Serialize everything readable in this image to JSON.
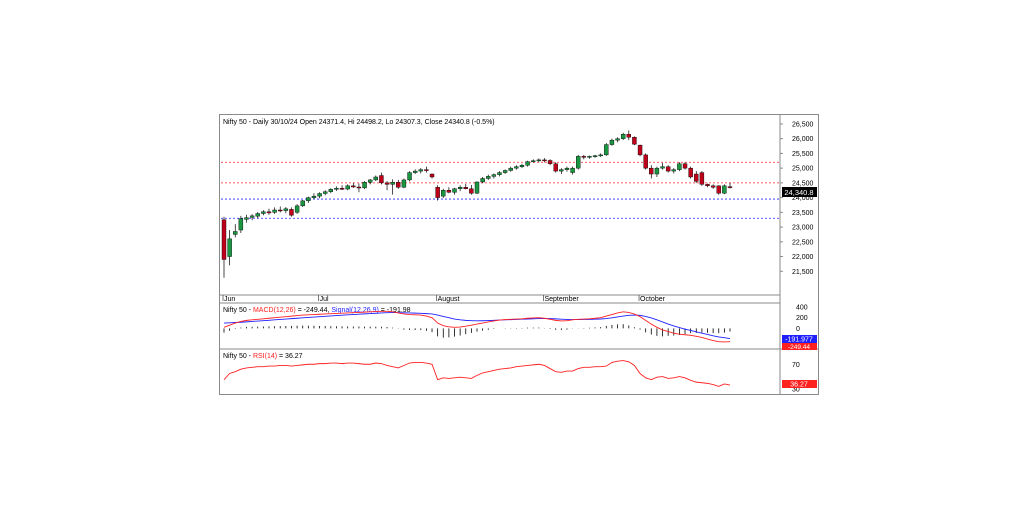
{
  "price_panel": {
    "header": "Nifty 50 - Daily 30/10/24 Open 24371.4, Hi 24498.2, Lo 24307.3, Close 24340.8 (-0.5%)",
    "last_price_tag": "24,340.8",
    "colors": {
      "up": "#1a9641",
      "down": "#c0001a",
      "resistance_line": "#ff2020",
      "support_line": "#2020ff",
      "tag_bg": "#000000"
    }
  },
  "macd_panel": {
    "label_prefix": "Nifty 50 - ",
    "macd_label": "MACD(12,26)",
    "macd_value": " = -249.44, ",
    "signal_label": "Signal(12,26,9)",
    "signal_value": " = -191.98",
    "signal_tag": "-191.977",
    "macd_tag": "-249.44",
    "colors": {
      "macd": "#ff2020",
      "signal": "#2020ff",
      "histogram": "#000000"
    }
  },
  "rsi_panel": {
    "label_prefix": "Nifty 50 - ",
    "rsi_label": "RSI(14)",
    "rsi_value": " = 36.27",
    "rsi_tag": "36.27",
    "color": "#ff2020"
  },
  "chart_data": [
    {
      "type": "candlestick",
      "title": "Nifty 50 - Daily 30/10/24 Open 24371.4, Hi 24498.2, Lo 24307.3, Close 24340.8 (-0.5%)",
      "ylim": [
        21000,
        26600
      ],
      "y_ticks": [
        "26,500",
        "26,000",
        "25,500",
        "25,000",
        "24,500",
        "24,000",
        "23,500",
        "23,000",
        "22,500",
        "22,000",
        "21,500"
      ],
      "x_ticks": [
        "Jun",
        "Jul",
        "August",
        "September",
        "October"
      ],
      "reference_lines": [
        {
          "value": 25200,
          "color": "#ff2020",
          "style": "dashed"
        },
        {
          "value": 24500,
          "color": "#ff2020",
          "style": "dashed"
        },
        {
          "value": 23950,
          "color": "#2020ff",
          "style": "dashed"
        },
        {
          "value": 23300,
          "color": "#2020ff",
          "style": "dashed"
        }
      ],
      "candles": [
        {
          "month": "Jun",
          "o": 23250,
          "h": 23350,
          "l": 21280,
          "c": 21900
        },
        {
          "o": 22000,
          "h": 22900,
          "l": 21700,
          "c": 22600
        },
        {
          "o": 22750,
          "h": 23100,
          "l": 22650,
          "c": 22850
        },
        {
          "o": 22900,
          "h": 23380,
          "l": 22800,
          "c": 23290
        },
        {
          "o": 23260,
          "h": 23420,
          "l": 23150,
          "c": 23320
        },
        {
          "o": 23330,
          "h": 23440,
          "l": 23230,
          "c": 23380
        },
        {
          "o": 23370,
          "h": 23510,
          "l": 23290,
          "c": 23460
        },
        {
          "o": 23460,
          "h": 23570,
          "l": 23400,
          "c": 23520
        },
        {
          "o": 23520,
          "h": 23620,
          "l": 23420,
          "c": 23480
        },
        {
          "o": 23500,
          "h": 23670,
          "l": 23450,
          "c": 23580
        },
        {
          "o": 23580,
          "h": 23700,
          "l": 23500,
          "c": 23560
        },
        {
          "o": 23560,
          "h": 23680,
          "l": 23470,
          "c": 23620
        },
        {
          "o": 23600,
          "h": 23670,
          "l": 23350,
          "c": 23400
        },
        {
          "o": 23500,
          "h": 23780,
          "l": 23450,
          "c": 23720
        },
        {
          "o": 23720,
          "h": 23920,
          "l": 23680,
          "c": 23890
        },
        {
          "o": 23890,
          "h": 24030,
          "l": 23820,
          "c": 24000
        },
        {
          "o": 24000,
          "h": 24150,
          "l": 23950,
          "c": 24050
        },
        {
          "month": "Jul",
          "o": 24050,
          "h": 24180,
          "l": 23980,
          "c": 24140
        },
        {
          "o": 24140,
          "h": 24250,
          "l": 24080,
          "c": 24200
        },
        {
          "o": 24200,
          "h": 24320,
          "l": 24150,
          "c": 24280
        },
        {
          "o": 24280,
          "h": 24380,
          "l": 24230,
          "c": 24320
        },
        {
          "o": 24320,
          "h": 24420,
          "l": 24260,
          "c": 24280
        },
        {
          "o": 24290,
          "h": 24450,
          "l": 24250,
          "c": 24400
        },
        {
          "o": 24400,
          "h": 24500,
          "l": 24330,
          "c": 24360
        },
        {
          "o": 24360,
          "h": 24480,
          "l": 24180,
          "c": 24330
        },
        {
          "o": 24330,
          "h": 24560,
          "l": 24290,
          "c": 24520
        },
        {
          "o": 24520,
          "h": 24630,
          "l": 24450,
          "c": 24600
        },
        {
          "o": 24600,
          "h": 24750,
          "l": 24560,
          "c": 24700
        },
        {
          "o": 24750,
          "h": 24850,
          "l": 24450,
          "c": 24500
        },
        {
          "o": 24500,
          "h": 24560,
          "l": 24250,
          "c": 24450
        },
        {
          "o": 24450,
          "h": 24620,
          "l": 24100,
          "c": 24520
        },
        {
          "o": 24520,
          "h": 24600,
          "l": 24300,
          "c": 24350
        },
        {
          "o": 24350,
          "h": 24650,
          "l": 24320,
          "c": 24600
        },
        {
          "o": 24600,
          "h": 24900,
          "l": 24550,
          "c": 24850
        },
        {
          "o": 24850,
          "h": 24960,
          "l": 24800,
          "c": 24900
        },
        {
          "o": 24900,
          "h": 25000,
          "l": 24820,
          "c": 24950
        },
        {
          "o": 24950,
          "h": 25050,
          "l": 24850,
          "c": 24920
        },
        {
          "o": 24800,
          "h": 24820,
          "l": 24650,
          "c": 24700
        },
        {
          "month": "August",
          "o": 24350,
          "h": 24420,
          "l": 23900,
          "c": 24000
        },
        {
          "o": 24050,
          "h": 24300,
          "l": 23990,
          "c": 24250
        },
        {
          "o": 24250,
          "h": 24350,
          "l": 24150,
          "c": 24180
        },
        {
          "o": 24180,
          "h": 24330,
          "l": 24100,
          "c": 24300
        },
        {
          "o": 24300,
          "h": 24420,
          "l": 24220,
          "c": 24350
        },
        {
          "o": 24350,
          "h": 24470,
          "l": 24280,
          "c": 24300
        },
        {
          "o": 24300,
          "h": 24430,
          "l": 24100,
          "c": 24150
        },
        {
          "o": 24150,
          "h": 24550,
          "l": 24120,
          "c": 24530
        },
        {
          "o": 24530,
          "h": 24700,
          "l": 24490,
          "c": 24650
        },
        {
          "o": 24650,
          "h": 24780,
          "l": 24600,
          "c": 24720
        },
        {
          "o": 24720,
          "h": 24820,
          "l": 24650,
          "c": 24780
        },
        {
          "o": 24780,
          "h": 24900,
          "l": 24720,
          "c": 24850
        },
        {
          "o": 24850,
          "h": 24960,
          "l": 24800,
          "c": 24920
        },
        {
          "o": 24920,
          "h": 25050,
          "l": 24880,
          "c": 25000
        },
        {
          "o": 25000,
          "h": 25100,
          "l": 24950,
          "c": 25050
        },
        {
          "o": 25050,
          "h": 25150,
          "l": 25000,
          "c": 25100
        },
        {
          "o": 25100,
          "h": 25250,
          "l": 25050,
          "c": 25220
        },
        {
          "o": 25220,
          "h": 25300,
          "l": 25180,
          "c": 25250
        },
        {
          "o": 25250,
          "h": 25330,
          "l": 25200,
          "c": 25280
        },
        {
          "month": "September",
          "o": 25280,
          "h": 25340,
          "l": 25200,
          "c": 25260
        },
        {
          "o": 25260,
          "h": 25300,
          "l": 25100,
          "c": 25150
        },
        {
          "o": 25150,
          "h": 25200,
          "l": 24850,
          "c": 24900
        },
        {
          "o": 24900,
          "h": 25000,
          "l": 24800,
          "c": 24950
        },
        {
          "o": 24950,
          "h": 25050,
          "l": 24880,
          "c": 25000
        },
        {
          "o": 24850,
          "h": 25050,
          "l": 24780,
          "c": 25000
        },
        {
          "o": 25000,
          "h": 25450,
          "l": 24950,
          "c": 25400
        },
        {
          "o": 25400,
          "h": 25450,
          "l": 25300,
          "c": 25380
        },
        {
          "o": 25380,
          "h": 25430,
          "l": 25320,
          "c": 25400
        },
        {
          "o": 25400,
          "h": 25450,
          "l": 25350,
          "c": 25420
        },
        {
          "o": 25420,
          "h": 25500,
          "l": 25380,
          "c": 25450
        },
        {
          "o": 25450,
          "h": 25850,
          "l": 25420,
          "c": 25800
        },
        {
          "o": 25800,
          "h": 26000,
          "l": 25760,
          "c": 25950
        },
        {
          "o": 25950,
          "h": 26050,
          "l": 25880,
          "c": 26000
        },
        {
          "o": 26000,
          "h": 26200,
          "l": 25950,
          "c": 26150
        },
        {
          "o": 26150,
          "h": 26280,
          "l": 25950,
          "c": 26050
        },
        {
          "o": 26050,
          "h": 26080,
          "l": 25780,
          "c": 25810
        },
        {
          "month": "October",
          "o": 25780,
          "h": 25800,
          "l": 25400,
          "c": 25450
        },
        {
          "o": 25450,
          "h": 25500,
          "l": 24950,
          "c": 25000
        },
        {
          "o": 25000,
          "h": 25100,
          "l": 24650,
          "c": 24800
        },
        {
          "o": 24800,
          "h": 25050,
          "l": 24700,
          "c": 25000
        },
        {
          "o": 25000,
          "h": 25180,
          "l": 24950,
          "c": 25050
        },
        {
          "o": 25050,
          "h": 25100,
          "l": 24850,
          "c": 24900
        },
        {
          "o": 24900,
          "h": 25000,
          "l": 24820,
          "c": 24950
        },
        {
          "o": 24950,
          "h": 25200,
          "l": 24900,
          "c": 25150
        },
        {
          "o": 25150,
          "h": 25200,
          "l": 24950,
          "c": 25000
        },
        {
          "o": 25000,
          "h": 25050,
          "l": 24650,
          "c": 24700
        },
        {
          "o": 24800,
          "h": 24900,
          "l": 24500,
          "c": 24550
        },
        {
          "o": 24850,
          "h": 24900,
          "l": 24400,
          "c": 24450
        },
        {
          "o": 24450,
          "h": 24480,
          "l": 24350,
          "c": 24400
        },
        {
          "o": 24400,
          "h": 24450,
          "l": 24300,
          "c": 24350
        },
        {
          "o": 24400,
          "h": 24420,
          "l": 24100,
          "c": 24150
        },
        {
          "o": 24150,
          "h": 24450,
          "l": 24120,
          "c": 24400
        },
        {
          "o": 24371.4,
          "h": 24498.2,
          "l": 24307.3,
          "c": 24340.8
        }
      ]
    },
    {
      "type": "line",
      "title": "Nifty 50 - MACD(12,26) = -249.44, Signal(12,26,9) = -191.98",
      "ylim": [
        -350,
        420
      ],
      "y_ticks": [
        "400",
        "200",
        "0"
      ],
      "series": [
        {
          "name": "MACD(12,26)",
          "values": [
            20,
            60,
            100,
            130,
            150,
            160,
            170,
            180,
            190,
            200,
            210,
            220,
            230,
            240,
            250,
            255,
            260,
            265,
            270,
            275,
            280,
            285,
            290,
            295,
            300,
            305,
            310,
            315,
            320,
            320,
            310,
            290,
            270,
            260,
            255,
            250,
            230,
            200,
            100,
            50,
            30,
            20,
            25,
            40,
            60,
            80,
            100,
            120,
            140,
            155,
            165,
            170,
            175,
            180,
            190,
            195,
            200,
            190,
            170,
            150,
            140,
            145,
            160,
            170,
            175,
            180,
            190,
            200,
            230,
            260,
            290,
            310,
            300,
            270,
            220,
            150,
            80,
            20,
            -30,
            -60,
            -90,
            -110,
            -120,
            -130,
            -150,
            -170,
            -200,
            -230,
            -250,
            -255,
            -250
          ]
        },
        {
          "name": "Signal(12,26,9)",
          "values": [
            100,
            105,
            110,
            115,
            122,
            130,
            138,
            145,
            152,
            160,
            168,
            175,
            183,
            190,
            198,
            205,
            212,
            220,
            227,
            234,
            241,
            248,
            254,
            260,
            266,
            272,
            278,
            284,
            290,
            294,
            296,
            296,
            293,
            290,
            286,
            282,
            277,
            270,
            250,
            225,
            200,
            175,
            160,
            150,
            145,
            142,
            143,
            146,
            150,
            155,
            160,
            164,
            168,
            172,
            176,
            180,
            184,
            185,
            183,
            178,
            172,
            168,
            166,
            166,
            167,
            169,
            172,
            176,
            185,
            198,
            215,
            232,
            245,
            250,
            244,
            225,
            195,
            160,
            120,
            80,
            45,
            15,
            -15,
            -40,
            -65,
            -90,
            -115,
            -140,
            -160,
            -175,
            -192
          ]
        }
      ]
    },
    {
      "type": "line",
      "title": "Nifty 50 - RSI(14) = 36.27",
      "ylim": [
        25,
        85
      ],
      "y_ticks": [
        "70",
        "30"
      ],
      "series": [
        {
          "name": "RSI(14)",
          "values": [
            45,
            55,
            58,
            62,
            64,
            65,
            66,
            66,
            67,
            67,
            68,
            68,
            67,
            68,
            69,
            70,
            70,
            71,
            71,
            72,
            72,
            71,
            72,
            72,
            71,
            70,
            70,
            72,
            71,
            68,
            66,
            64,
            68,
            72,
            73,
            73,
            72,
            70,
            45,
            48,
            47,
            48,
            49,
            48,
            47,
            52,
            56,
            58,
            60,
            62,
            63,
            64,
            66,
            67,
            68,
            69,
            70,
            68,
            63,
            58,
            57,
            59,
            59,
            63,
            65,
            65,
            66,
            66,
            67,
            73,
            75,
            76,
            74,
            68,
            55,
            48,
            45,
            49,
            50,
            47,
            48,
            50,
            48,
            44,
            41,
            40,
            39,
            37,
            34,
            38,
            36.27
          ]
        }
      ]
    }
  ]
}
